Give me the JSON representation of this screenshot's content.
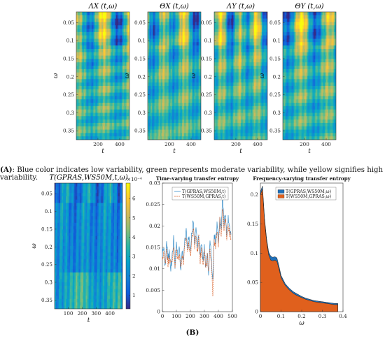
{
  "caption_a": {
    "label": "(A)",
    "text": ": Blue color indicates low variability, green represents moderate variability, while yellow signifies high variability."
  },
  "caption_b": {
    "label": "(B)"
  },
  "colors": {
    "parula": [
      "#352a87",
      "#0f5cdd",
      "#1481d6",
      "#06a4ca",
      "#2eb7a4",
      "#87bf77",
      "#d1bb59",
      "#fec832",
      "#f9fb0e"
    ],
    "series_blue": "#3a8fc9",
    "series_orange": "#d9622b",
    "area_blue": "#1f6fb8",
    "area_orange": "#e0601d"
  },
  "chart_data": [
    {
      "type": "heatmap",
      "title": "ΛX (t,ω)",
      "xlabel": "t",
      "ylabel": "ω",
      "x_ticks": [
        "200",
        "400"
      ],
      "y_ticks": [
        "0.05",
        "0.1",
        "0.15",
        "0.2",
        "0.25",
        "0.3",
        "0.35"
      ],
      "xlim": [
        1,
        490
      ],
      "ylim": [
        0.02,
        0.375
      ],
      "seed": 3
    },
    {
      "type": "heatmap",
      "title": "ΘX (t,ω)",
      "xlabel": "t",
      "ylabel": "ω",
      "x_ticks": [
        "200",
        "400"
      ],
      "y_ticks": [
        "0.05",
        "0.1",
        "0.15",
        "0.2",
        "0.25",
        "0.3",
        "0.35"
      ],
      "xlim": [
        1,
        490
      ],
      "ylim": [
        0.02,
        0.375
      ],
      "seed": 7
    },
    {
      "type": "heatmap",
      "title": "ΛY (t,ω)",
      "xlabel": "t",
      "ylabel": "ω",
      "x_ticks": [
        "200",
        "400"
      ],
      "y_ticks": [
        "0.05",
        "0.1",
        "0.15",
        "0.2",
        "0.25",
        "0.3",
        "0.35"
      ],
      "xlim": [
        1,
        490
      ],
      "ylim": [
        0.02,
        0.375
      ],
      "seed": 11
    },
    {
      "type": "heatmap",
      "title": "ΘY (t,ω)",
      "xlabel": "t",
      "ylabel": "ω",
      "x_ticks": [
        "200",
        "400"
      ],
      "y_ticks": [
        "0.05",
        "0.1",
        "0.15",
        "0.2",
        "0.25",
        "0.3",
        "0.35"
      ],
      "xlim": [
        1,
        490
      ],
      "ylim": [
        0.02,
        0.375
      ],
      "seed": 19
    },
    {
      "type": "heatmap",
      "title": "T(GPRAS,WS50M,t,ω)",
      "xlabel": "t",
      "ylabel": "ω",
      "x_ticks": [
        "100",
        "200",
        "300",
        "400"
      ],
      "y_ticks": [
        "0.05",
        "0.1",
        "0.15",
        "0.2",
        "0.25",
        "0.3",
        "0.35"
      ],
      "colorbar_ticks": [
        "1",
        "2",
        "3",
        "4",
        "5",
        "6"
      ],
      "colorbar_exponent": "×10⁻⁴",
      "clim": [
        0.3,
        6.8
      ],
      "xlim": [
        1,
        490
      ],
      "ylim": [
        0.02,
        0.375
      ],
      "seed": 29
    },
    {
      "type": "line",
      "title": "Time-varying transfer entropy",
      "x_ticks": [
        "0",
        "100",
        "200",
        "300",
        "400",
        "500"
      ],
      "y_ticks": [
        "0",
        "0.005",
        "0.01",
        "0.015",
        "0.02",
        "0.025",
        "0.03"
      ],
      "xlim": [
        0,
        500
      ],
      "ylim": [
        0,
        0.03
      ],
      "series": [
        {
          "name": "T(GPRAS,WS50M,t)",
          "x": [
            0,
            10,
            20,
            30,
            40,
            50,
            60,
            70,
            80,
            90,
            100,
            110,
            120,
            130,
            140,
            150,
            160,
            170,
            180,
            190,
            200,
            210,
            220,
            230,
            240,
            250,
            260,
            270,
            280,
            290,
            300,
            310,
            320,
            330,
            340,
            350,
            360,
            370,
            380,
            390,
            400,
            410,
            420,
            430,
            440,
            450,
            460,
            470,
            480,
            490
          ],
          "values": [
            0.0135,
            0.015,
            0.0105,
            0.0165,
            0.012,
            0.0145,
            0.01,
            0.013,
            0.017,
            0.011,
            0.016,
            0.013,
            0.015,
            0.0095,
            0.014,
            0.012,
            0.0165,
            0.019,
            0.015,
            0.0175,
            0.014,
            0.0185,
            0.021,
            0.016,
            0.0195,
            0.015,
            0.018,
            0.013,
            0.0165,
            0.012,
            0.015,
            0.01,
            0.014,
            0.009,
            0.016,
            0.013,
            0.007,
            0.0185,
            0.0155,
            0.02,
            0.017,
            0.0225,
            0.019,
            0.0265,
            0.02,
            0.023,
            0.0185,
            0.0215,
            0.0195,
            0.018
          ]
        },
        {
          "name": "T(WS50M,GPRAS,t)",
          "x": [
            0,
            10,
            20,
            30,
            40,
            50,
            60,
            70,
            80,
            90,
            100,
            110,
            120,
            130,
            140,
            150,
            160,
            170,
            180,
            190,
            200,
            210,
            220,
            230,
            240,
            250,
            260,
            270,
            280,
            290,
            300,
            310,
            320,
            330,
            340,
            350,
            360,
            370,
            380,
            390,
            400,
            410,
            420,
            430,
            440,
            450,
            460,
            470,
            480,
            490
          ],
          "values": [
            0.0125,
            0.014,
            0.0115,
            0.015,
            0.011,
            0.0135,
            0.011,
            0.012,
            0.0155,
            0.01,
            0.0145,
            0.012,
            0.014,
            0.0105,
            0.013,
            0.0115,
            0.015,
            0.0175,
            0.014,
            0.016,
            0.013,
            0.017,
            0.0195,
            0.015,
            0.018,
            0.014,
            0.017,
            0.012,
            0.015,
            0.0115,
            0.014,
            0.0095,
            0.013,
            0.0085,
            0.0145,
            0.012,
            0.004,
            0.017,
            0.0145,
            0.0185,
            0.016,
            0.021,
            0.018,
            0.025,
            0.019,
            0.0215,
            0.0175,
            0.0205,
            0.0185,
            0.017
          ]
        }
      ]
    },
    {
      "type": "area",
      "title": "Frequency-varying transfer entropy",
      "xlabel": "ω",
      "x_ticks": [
        "0",
        "0.1",
        "0.2",
        "0.3",
        "0.4"
      ],
      "y_ticks": [
        "0",
        "0.05",
        "0.1",
        "0.15",
        "0.2"
      ],
      "xlim": [
        0,
        0.4
      ],
      "ylim": [
        0,
        0.22
      ],
      "x": [
        0,
        0.01,
        0.02,
        0.03,
        0.04,
        0.05,
        0.06,
        0.07,
        0.08,
        0.09,
        0.1,
        0.12,
        0.14,
        0.16,
        0.18,
        0.2,
        0.22,
        0.24,
        0.26,
        0.28,
        0.3,
        0.32,
        0.34,
        0.36,
        0.375
      ],
      "series": [
        {
          "name": "T(GPRAS,WS50M,ω)",
          "values": [
            0.205,
            0.215,
            0.16,
            0.125,
            0.102,
            0.095,
            0.093,
            0.094,
            0.092,
            0.078,
            0.062,
            0.048,
            0.04,
            0.034,
            0.03,
            0.026,
            0.023,
            0.021,
            0.019,
            0.018,
            0.017,
            0.016,
            0.015,
            0.014,
            0.014
          ]
        },
        {
          "name": "T(WS50M,GPRAS,ω)",
          "values": [
            0.2,
            0.21,
            0.155,
            0.12,
            0.097,
            0.088,
            0.087,
            0.088,
            0.086,
            0.073,
            0.058,
            0.045,
            0.037,
            0.031,
            0.027,
            0.024,
            0.021,
            0.019,
            0.017,
            0.016,
            0.015,
            0.014,
            0.013,
            0.012,
            0.012
          ]
        }
      ]
    }
  ]
}
